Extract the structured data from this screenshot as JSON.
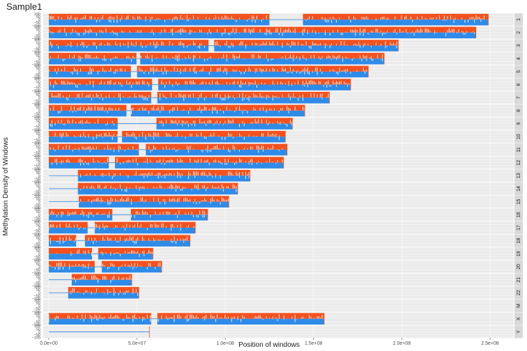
{
  "chart_data": {
    "type": "area",
    "title": "Sample1",
    "xlabel": "Position of windows",
    "ylabel": "Methylation Density of Windows",
    "xlim": [
      0,
      252000000
    ],
    "x_ticks": [
      0,
      50000000,
      100000000,
      150000000,
      200000000,
      250000000
    ],
    "x_tick_labels": [
      "0.0e+00",
      "5.0e+07",
      "1.0e+08",
      "1.5e+08",
      "2.0e+08",
      "2.5e+08"
    ],
    "y_ticks": [
      100,
      50,
      0,
      -50,
      -100
    ],
    "y_tick_labels": [
      "100",
      "50",
      "0",
      "−50",
      "−100"
    ],
    "ylim": [
      -110,
      110
    ],
    "grid": true,
    "facet_strip_position": "right",
    "colors": {
      "positive": "#f4511e",
      "negative": "#2f8be8",
      "strip": "#d9d9d9",
      "panel": "#ebebeb"
    },
    "series": [
      {
        "name": "+",
        "color": "#f4511e"
      },
      {
        "name": "-",
        "color": "#2f8be8"
      }
    ],
    "panels": [
      {
        "chrom": "1",
        "length": 249000000,
        "gaps": [
          [
            125000000,
            144000000
          ]
        ]
      },
      {
        "chrom": "2",
        "length": 242000000,
        "gaps": []
      },
      {
        "chrom": "3",
        "length": 198000000,
        "gaps": [
          [
            90500000,
            93700000
          ]
        ]
      },
      {
        "chrom": "4",
        "length": 190000000,
        "gaps": [
          [
            49700000,
            51800000
          ]
        ]
      },
      {
        "chrom": "5",
        "length": 181000000,
        "gaps": [
          [
            46500000,
            50000000
          ]
        ]
      },
      {
        "chrom": "6",
        "length": 171000000,
        "gaps": [
          [
            58500000,
            62000000
          ]
        ]
      },
      {
        "chrom": "7",
        "length": 159000000,
        "gaps": [
          [
            58000000,
            61500000
          ]
        ]
      },
      {
        "chrom": "8",
        "length": 145000000,
        "gaps": [
          [
            44000000,
            46500000
          ]
        ]
      },
      {
        "chrom": "9",
        "length": 138000000,
        "gaps": [
          [
            39000000,
            61000000
          ]
        ]
      },
      {
        "chrom": "10",
        "length": 134000000,
        "gaps": [
          [
            39000000,
            41500000
          ]
        ]
      },
      {
        "chrom": "11",
        "length": 135000000,
        "gaps": [
          [
            51000000,
            55000000
          ]
        ]
      },
      {
        "chrom": "12",
        "length": 133000000,
        "gaps": [
          [
            34000000,
            37500000
          ]
        ]
      },
      {
        "chrom": "13",
        "length": 114000000,
        "gaps": [
          [
            0,
            16500000
          ]
        ]
      },
      {
        "chrom": "14",
        "length": 107000000,
        "gaps": [
          [
            0,
            16500000
          ]
        ]
      },
      {
        "chrom": "15",
        "length": 102000000,
        "gaps": [
          [
            0,
            17000000
          ]
        ]
      },
      {
        "chrom": "16",
        "length": 90000000,
        "gaps": [
          [
            36000000,
            46500000
          ]
        ]
      },
      {
        "chrom": "17",
        "length": 83000000,
        "gaps": [
          [
            22000000,
            26000000
          ]
        ]
      },
      {
        "chrom": "18",
        "length": 80000000,
        "gaps": [
          [
            15500000,
            20500000
          ]
        ]
      },
      {
        "chrom": "19",
        "length": 59000000,
        "gaps": [
          [
            24500000,
            28000000
          ]
        ]
      },
      {
        "chrom": "20",
        "length": 64000000,
        "gaps": [
          [
            26000000,
            30000000
          ]
        ]
      },
      {
        "chrom": "21",
        "length": 47000000,
        "gaps": [
          [
            0,
            13000000
          ]
        ]
      },
      {
        "chrom": "22",
        "length": 51000000,
        "gaps": [
          [
            0,
            11000000
          ]
        ]
      },
      {
        "chrom": "M",
        "length": 16569,
        "gaps": []
      },
      {
        "chrom": "X",
        "length": 156000000,
        "gaps": [
          [
            58000000,
            61500000
          ]
        ]
      },
      {
        "chrom": "Y",
        "length": 57000000,
        "gaps": [
          [
            0,
            57000000
          ]
        ]
      }
    ]
  }
}
